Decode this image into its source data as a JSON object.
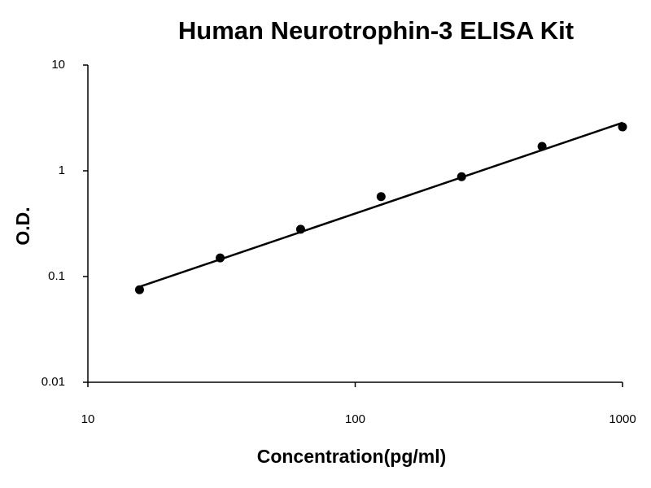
{
  "chart_data": {
    "type": "scatter",
    "title": "Human Neurotrophin-3 ELISA Kit",
    "x_label": "Concentration(pg/ml)",
    "y_label": "O.D.",
    "x": [
      15.6,
      31.25,
      62.5,
      125,
      250,
      500,
      1000
    ],
    "values": [
      0.075,
      0.15,
      0.28,
      0.57,
      0.88,
      1.7,
      2.6
    ],
    "color": "#000000",
    "trendline": {
      "x": [
        15.6,
        1000
      ],
      "values": [
        0.08,
        2.85
      ]
    },
    "xscale": "log",
    "yscale": "log",
    "xlim": [
      10,
      1000
    ],
    "ylim": [
      0.01,
      10
    ],
    "xticks": [
      10,
      100,
      1000
    ],
    "yticks": [
      0.01,
      0.1,
      1,
      10
    ],
    "grid": false
  }
}
